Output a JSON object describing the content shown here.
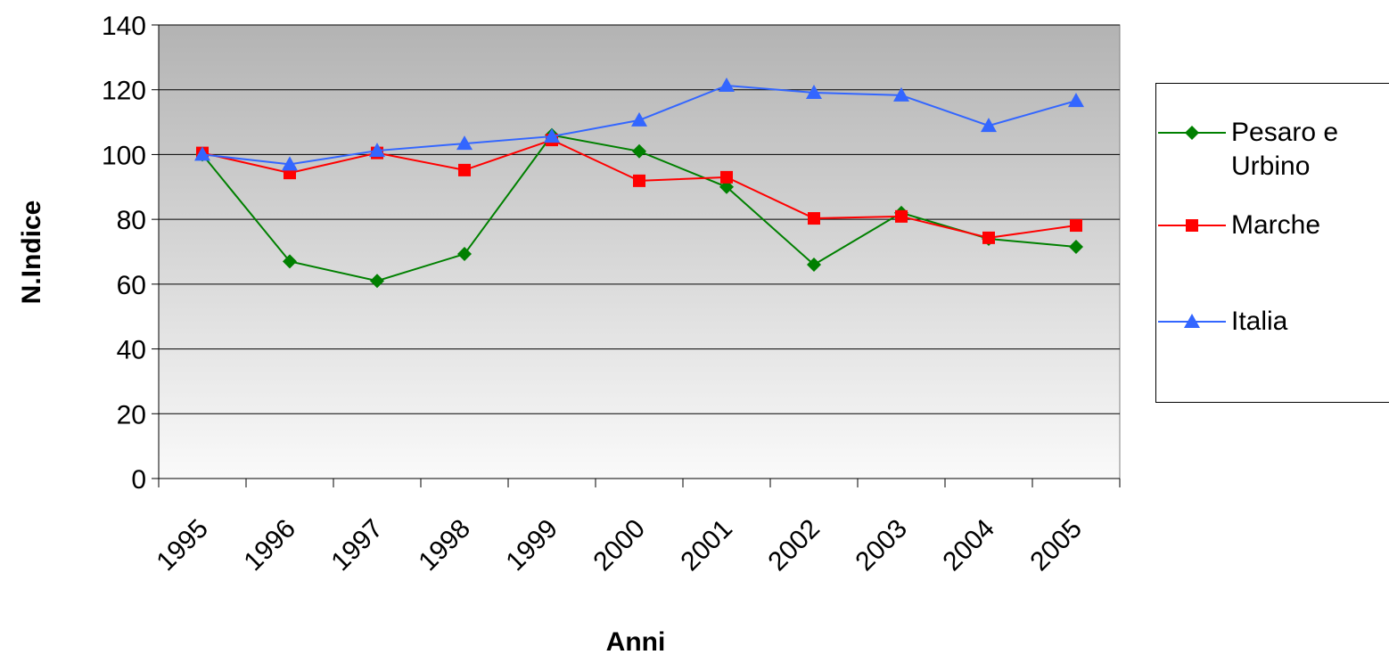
{
  "chart_data": {
    "type": "line",
    "x_label": "Anni",
    "y_label": "N.Indice",
    "categories": [
      "1995",
      "1996",
      "1997",
      "1998",
      "1999",
      "2000",
      "2001",
      "2002",
      "2003",
      "2004",
      "2005"
    ],
    "series": [
      {
        "name": "Pesaro e Urbino",
        "color": "#008000",
        "marker": "diamond",
        "values": [
          100,
          67,
          61,
          69.3,
          106,
          101,
          90,
          66,
          82,
          74,
          71.5
        ]
      },
      {
        "name": "Marche",
        "color": "#ff0000",
        "marker": "square",
        "values": [
          100.5,
          94.3,
          100.5,
          95.2,
          104.5,
          91.9,
          93,
          80.3,
          80.9,
          74.3,
          78.1
        ]
      },
      {
        "name": "Italia",
        "color": "#3366ff",
        "marker": "triangle",
        "values": [
          100,
          97,
          101.2,
          103.4,
          105.6,
          110.6,
          121.3,
          119.1,
          118.3,
          108.9,
          116.6
        ]
      }
    ],
    "ylim": [
      0,
      140
    ],
    "yticks": [
      0,
      20,
      40,
      60,
      80,
      100,
      120,
      140
    ],
    "grid": true,
    "legend": "right"
  }
}
